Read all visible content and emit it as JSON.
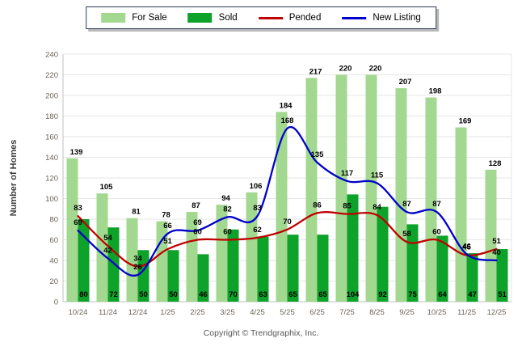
{
  "legend": {
    "items": [
      {
        "label": "For Sale",
        "type": "bar",
        "color": "#a2d88f"
      },
      {
        "label": "Sold",
        "type": "bar",
        "color": "#0da229"
      },
      {
        "label": "Pended",
        "type": "line",
        "color": "#c00000"
      },
      {
        "label": "New Listing",
        "type": "line",
        "color": "#0000cc"
      }
    ]
  },
  "chart_data": {
    "type": "bar",
    "title": "",
    "ylabel": "Number of Homes",
    "xlabel": "",
    "ylim": [
      0,
      240
    ],
    "ytick_step": 20,
    "grid": true,
    "legend_position": "top",
    "categories": [
      "10/24",
      "11/24",
      "12/24",
      "1/25",
      "2/25",
      "3/25",
      "4/25",
      "5/25",
      "6/25",
      "7/25",
      "8/25",
      "9/25",
      "10/25",
      "11/25",
      "12/25"
    ],
    "series": [
      {
        "name": "For Sale",
        "kind": "bar",
        "color": "#a2d88f",
        "values": [
          139,
          105,
          81,
          78,
          87,
          94,
          106,
          184,
          217,
          220,
          220,
          207,
          198,
          169,
          128
        ]
      },
      {
        "name": "Sold",
        "kind": "bar",
        "color": "#0da229",
        "values": [
          80,
          72,
          50,
          50,
          46,
          70,
          63,
          65,
          65,
          104,
          92,
          75,
          64,
          47,
          51
        ]
      },
      {
        "name": "Pended",
        "kind": "line",
        "color": "#c00000",
        "values": [
          83,
          54,
          34,
          51,
          60,
          60,
          62,
          70,
          86,
          85,
          84,
          58,
          60,
          45,
          51
        ]
      },
      {
        "name": "New Listing",
        "kind": "line",
        "color": "#0000cc",
        "values": [
          69,
          42,
          26,
          66,
          69,
          82,
          83,
          168,
          135,
          117,
          115,
          87,
          87,
          46,
          40
        ]
      }
    ]
  },
  "footer": {
    "text": "Copyright © Trendgraphix, Inc."
  },
  "style": {
    "grid_color": "#e6e6e6",
    "axis_color": "#c2c2c2",
    "tick_text_color": "#6e6459",
    "value_text_color": "#000000",
    "ylabel_color": "#3d3d3d"
  }
}
